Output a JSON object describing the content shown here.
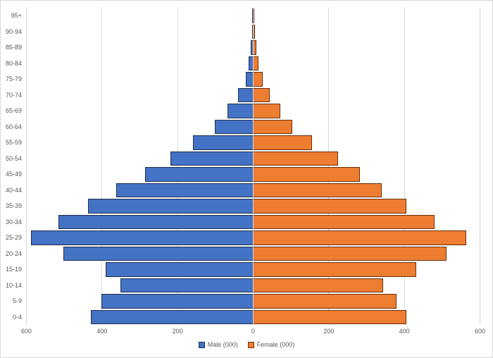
{
  "colors": {
    "male_fill": "#4472C4",
    "male_border": "#1f3050",
    "female_fill": "#ED7D31",
    "female_border": "#6b2f0c",
    "gridline": "#d9d9d9",
    "axis_text": "#595959",
    "frame_border": "#d9d9d9",
    "background": "#ffffff"
  },
  "chart_data": {
    "type": "bar",
    "subtype": "population-pyramid",
    "orientation": "horizontal",
    "title": "",
    "xlabel": "",
    "ylabel": "",
    "grid": "vertical-only",
    "legend_position": "bottom-center",
    "axis_range": [
      -600,
      600
    ],
    "tick_interval": 200,
    "x_ticks": [
      "600",
      "400",
      "200",
      "0",
      "200",
      "400",
      "600"
    ],
    "categories": [
      "95+",
      "90-94",
      "85-89",
      "80-84",
      "75-79",
      "70-74",
      "65-69",
      "60-64",
      "55-59",
      "50-54",
      "45-49",
      "40-44",
      "35-39",
      "30-34",
      "25-29",
      "20-24",
      "15-19",
      "10-14",
      "5-9",
      "0-4"
    ],
    "series": [
      {
        "name": "Male (000)",
        "side": "left",
        "color": "#4472C4",
        "values": [
          1,
          1,
          4,
          11,
          18,
          38,
          67,
          99,
          158,
          217,
          285,
          360,
          435,
          513,
          586,
          500,
          388,
          350,
          400,
          428
        ]
      },
      {
        "name": "Female (000)",
        "side": "right",
        "color": "#ED7D31",
        "values": [
          1,
          2,
          6,
          13,
          23,
          42,
          70,
          102,
          153,
          222,
          281,
          338,
          403,
          478,
          561,
          510,
          430,
          341,
          377,
          404
        ]
      }
    ]
  }
}
